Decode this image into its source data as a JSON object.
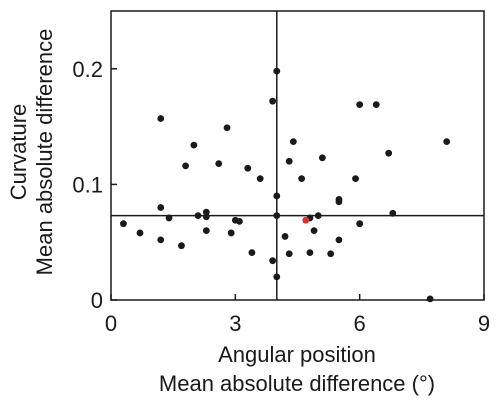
{
  "chart_data": {
    "type": "scatter",
    "title": "",
    "xlabel": [
      "Angular position",
      "Mean absolute difference (°)"
    ],
    "ylabel": [
      "Curvature",
      "Mean absolute difference"
    ],
    "xlim": [
      0,
      9
    ],
    "ylim": [
      0,
      0.25
    ],
    "xticks": [
      0,
      3,
      6,
      9
    ],
    "xtick_labels": [
      "0",
      "3",
      "6",
      "9"
    ],
    "yticks": [
      0,
      0.1,
      0.2
    ],
    "ytick_labels": [
      "0",
      "0.1",
      "0.2"
    ],
    "grid": false,
    "reference_lines": {
      "vertical_x": 4.0,
      "horizontal_y": 0.073
    },
    "colors": {
      "points": "#1a1a1a",
      "highlight": "#e03030",
      "axes": "#1a1a1a"
    },
    "series": [
      {
        "points": [
          [
            0.3,
            0.066
          ],
          [
            0.7,
            0.058
          ],
          [
            1.2,
            0.157
          ],
          [
            1.2,
            0.08
          ],
          [
            1.2,
            0.052
          ],
          [
            1.4,
            0.071
          ],
          [
            1.7,
            0.047
          ],
          [
            1.8,
            0.116
          ],
          [
            2.0,
            0.134
          ],
          [
            2.1,
            0.073
          ],
          [
            2.3,
            0.076
          ],
          [
            2.3,
            0.072
          ],
          [
            2.3,
            0.06
          ],
          [
            2.6,
            0.118
          ],
          [
            2.8,
            0.149
          ],
          [
            2.9,
            0.058
          ],
          [
            3.0,
            0.069
          ],
          [
            3.1,
            0.068
          ],
          [
            3.3,
            0.114
          ],
          [
            3.4,
            0.041
          ],
          [
            3.6,
            0.105
          ],
          [
            3.9,
            0.172
          ],
          [
            3.9,
            0.034
          ],
          [
            4.0,
            0.198
          ],
          [
            4.0,
            0.02
          ],
          [
            4.0,
            0.09
          ],
          [
            4.0,
            0.073
          ],
          [
            4.2,
            0.055
          ],
          [
            4.3,
            0.12
          ],
          [
            4.4,
            0.137
          ],
          [
            4.6,
            0.105
          ],
          [
            4.8,
            0.071
          ],
          [
            4.9,
            0.06
          ],
          [
            5.0,
            0.073
          ],
          [
            5.1,
            0.123
          ],
          [
            5.3,
            0.04
          ],
          [
            5.5,
            0.087
          ],
          [
            5.5,
            0.085
          ],
          [
            5.5,
            0.052
          ],
          [
            5.9,
            0.105
          ],
          [
            6.0,
            0.169
          ],
          [
            6.0,
            0.066
          ],
          [
            6.4,
            0.169
          ],
          [
            6.7,
            0.127
          ],
          [
            6.8,
            0.075
          ],
          [
            4.3,
            0.04
          ],
          [
            4.8,
            0.041
          ],
          [
            7.7,
            0.001
          ],
          [
            8.1,
            0.137
          ]
        ]
      },
      {
        "points": [
          [
            4.7,
            0.069
          ]
        ]
      }
    ]
  }
}
